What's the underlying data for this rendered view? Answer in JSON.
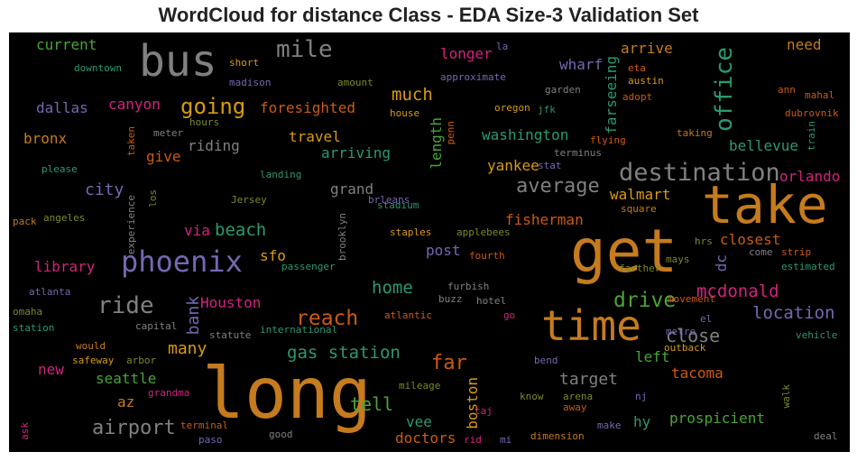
{
  "title": "WordCloud for distance Class - EDA Size-3 Validation Set",
  "colors": {
    "orange": "#c57b1e",
    "dark_orange": "#cc5a10",
    "green": "#49a536",
    "teal": "#2a9a6f",
    "grey": "#808080",
    "purple": "#7468b0",
    "pink": "#d2237d",
    "gold": "#d89a14",
    "olive": "#7a8a2a"
  },
  "words": [
    {
      "text": "long"
    },
    {
      "text": "get"
    },
    {
      "text": "take"
    },
    {
      "text": "time"
    },
    {
      "text": "bus"
    },
    {
      "text": "phoenix"
    },
    {
      "text": "destination"
    },
    {
      "text": "office"
    },
    {
      "text": "mile"
    },
    {
      "text": "ride"
    },
    {
      "text": "going"
    },
    {
      "text": "reach"
    },
    {
      "text": "drive"
    },
    {
      "text": "airport"
    },
    {
      "text": "average"
    },
    {
      "text": "far"
    },
    {
      "text": "mcdonald"
    },
    {
      "text": "close"
    },
    {
      "text": "location"
    },
    {
      "text": "tell"
    },
    {
      "text": "home"
    },
    {
      "text": "gas station"
    },
    {
      "text": "much"
    },
    {
      "text": "beach"
    },
    {
      "text": "city"
    },
    {
      "text": "many"
    },
    {
      "text": "target"
    },
    {
      "text": "bank"
    },
    {
      "text": "washington"
    },
    {
      "text": "orlando"
    },
    {
      "text": "foresighted"
    },
    {
      "text": "arriving"
    },
    {
      "text": "travel"
    },
    {
      "text": "Houston"
    },
    {
      "text": "walmart"
    },
    {
      "text": "fisherman"
    },
    {
      "text": "closest"
    },
    {
      "text": "prospicient"
    },
    {
      "text": "tacoma"
    },
    {
      "text": "seattle"
    },
    {
      "text": "doctors"
    },
    {
      "text": "dallas"
    },
    {
      "text": "canyon"
    },
    {
      "text": "riding"
    },
    {
      "text": "current"
    },
    {
      "text": "longer"
    },
    {
      "text": "wharf"
    },
    {
      "text": "arrive"
    },
    {
      "text": "bellevue"
    },
    {
      "text": "yankee"
    },
    {
      "text": "library"
    },
    {
      "text": "post"
    },
    {
      "text": "sfo"
    },
    {
      "text": "via"
    },
    {
      "text": "dc"
    },
    {
      "text": "left"
    },
    {
      "text": "give"
    },
    {
      "text": "bronx"
    },
    {
      "text": "grand"
    },
    {
      "text": "length"
    },
    {
      "text": "farseeing"
    },
    {
      "text": "need"
    },
    {
      "text": "vee"
    },
    {
      "text": "hy"
    },
    {
      "text": "az"
    },
    {
      "text": "new"
    },
    {
      "text": "boston"
    },
    {
      "text": "downtown"
    },
    {
      "text": "short"
    },
    {
      "text": "madison"
    },
    {
      "text": "amount"
    },
    {
      "text": "approximate"
    },
    {
      "text": "garden"
    },
    {
      "text": "eta"
    },
    {
      "text": "austin"
    },
    {
      "text": "adopt"
    },
    {
      "text": "ann"
    },
    {
      "text": "mahal"
    },
    {
      "text": "dubrovnik"
    },
    {
      "text": "train"
    },
    {
      "text": "hours"
    },
    {
      "text": "meter"
    },
    {
      "text": "house"
    },
    {
      "text": "oregon"
    },
    {
      "text": "jfk"
    },
    {
      "text": "taking"
    },
    {
      "text": "flying"
    },
    {
      "text": "terminus"
    },
    {
      "text": "stat"
    },
    {
      "text": "penn"
    },
    {
      "text": "taken"
    },
    {
      "text": "please"
    },
    {
      "text": "landing"
    },
    {
      "text": "Jersey"
    },
    {
      "text": "brleans"
    },
    {
      "text": "stadium"
    },
    {
      "text": "pack"
    },
    {
      "text": "angeles"
    },
    {
      "text": "experience"
    },
    {
      "text": "los"
    },
    {
      "text": "staples"
    },
    {
      "text": "applebees"
    },
    {
      "text": "square"
    },
    {
      "text": "fourth"
    },
    {
      "text": "brooklyn"
    },
    {
      "text": "passenger"
    },
    {
      "text": "hrs"
    },
    {
      "text": "mays"
    },
    {
      "text": "farther"
    },
    {
      "text": "come"
    },
    {
      "text": "strip"
    },
    {
      "text": "estimated"
    },
    {
      "text": "furbish"
    },
    {
      "text": "buzz"
    },
    {
      "text": "hotel"
    },
    {
      "text": "atlanta"
    },
    {
      "text": "omaha"
    },
    {
      "text": "station"
    },
    {
      "text": "capital"
    },
    {
      "text": "international"
    },
    {
      "text": "statute"
    },
    {
      "text": "atlantic"
    },
    {
      "text": "go"
    },
    {
      "text": "movement"
    },
    {
      "text": "el"
    },
    {
      "text": "metre"
    },
    {
      "text": "outback"
    },
    {
      "text": "vehicle"
    },
    {
      "text": "would"
    },
    {
      "text": "safeway"
    },
    {
      "text": "arbor"
    },
    {
      "text": "grandma"
    },
    {
      "text": "mileage"
    },
    {
      "text": "bend"
    },
    {
      "text": "know"
    },
    {
      "text": "arena"
    },
    {
      "text": "away"
    },
    {
      "text": "nj"
    },
    {
      "text": "walk"
    },
    {
      "text": "make"
    },
    {
      "text": "deal"
    },
    {
      "text": "dimension"
    },
    {
      "text": "taj"
    },
    {
      "text": "rid"
    },
    {
      "text": "mi"
    },
    {
      "text": "good"
    },
    {
      "text": "paso"
    },
    {
      "text": "terminal"
    },
    {
      "text": "ask"
    },
    {
      "text": "la"
    }
  ]
}
